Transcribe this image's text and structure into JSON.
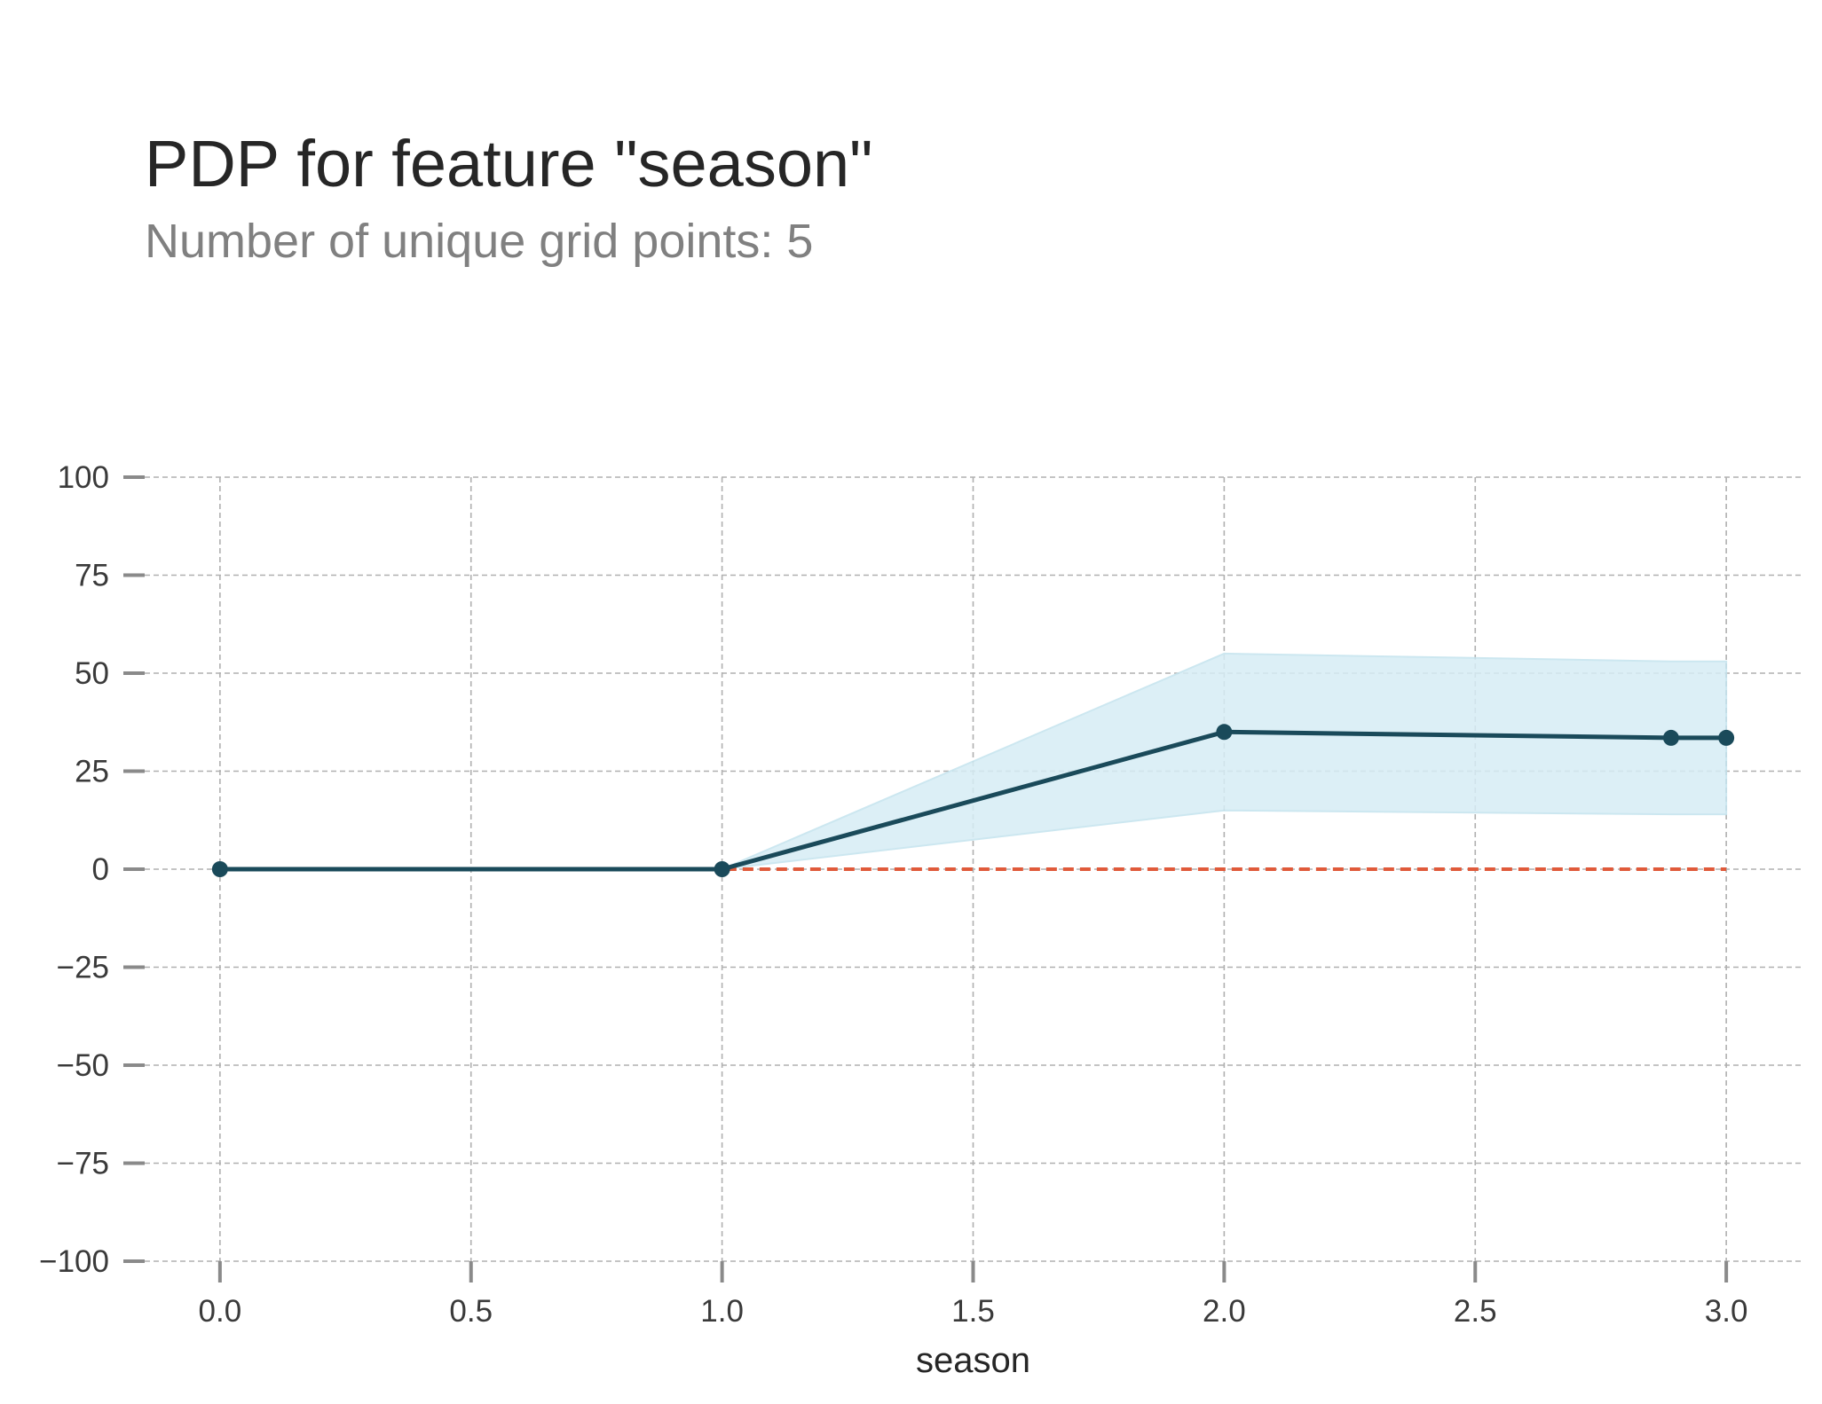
{
  "chart_data": {
    "type": "line",
    "title": "PDP for feature \"season\"",
    "subtitle": "Number of unique grid points: 5",
    "xlabel": "season",
    "ylabel": "",
    "xlim": [
      -0.15,
      3.15
    ],
    "ylim": [
      -100,
      100
    ],
    "x_ticks": [
      0.0,
      0.5,
      1.0,
      1.5,
      2.0,
      2.5,
      3.0
    ],
    "x_tick_labels": [
      "0.0",
      "0.5",
      "1.0",
      "1.5",
      "2.0",
      "2.5",
      "3.0"
    ],
    "y_ticks": [
      100,
      75,
      50,
      25,
      0,
      -25,
      -50,
      -75,
      -100
    ],
    "y_tick_labels": [
      "100",
      "75",
      "50",
      "25",
      "0",
      "−25",
      "−50",
      "−75",
      "−100"
    ],
    "grid": true,
    "series": [
      {
        "x": [
          0,
          1,
          2,
          2.89,
          3
        ],
        "y": [
          0,
          0,
          35,
          33.5,
          33.5
        ],
        "lower": [
          0,
          0,
          15,
          14,
          14
        ],
        "upper": [
          0,
          0,
          55,
          53,
          53
        ],
        "color": "#1a4a5a",
        "band_color": "#d6edf5"
      }
    ],
    "reference_line": {
      "y": 0,
      "color": "#e05a3a",
      "style": "dashed"
    }
  }
}
